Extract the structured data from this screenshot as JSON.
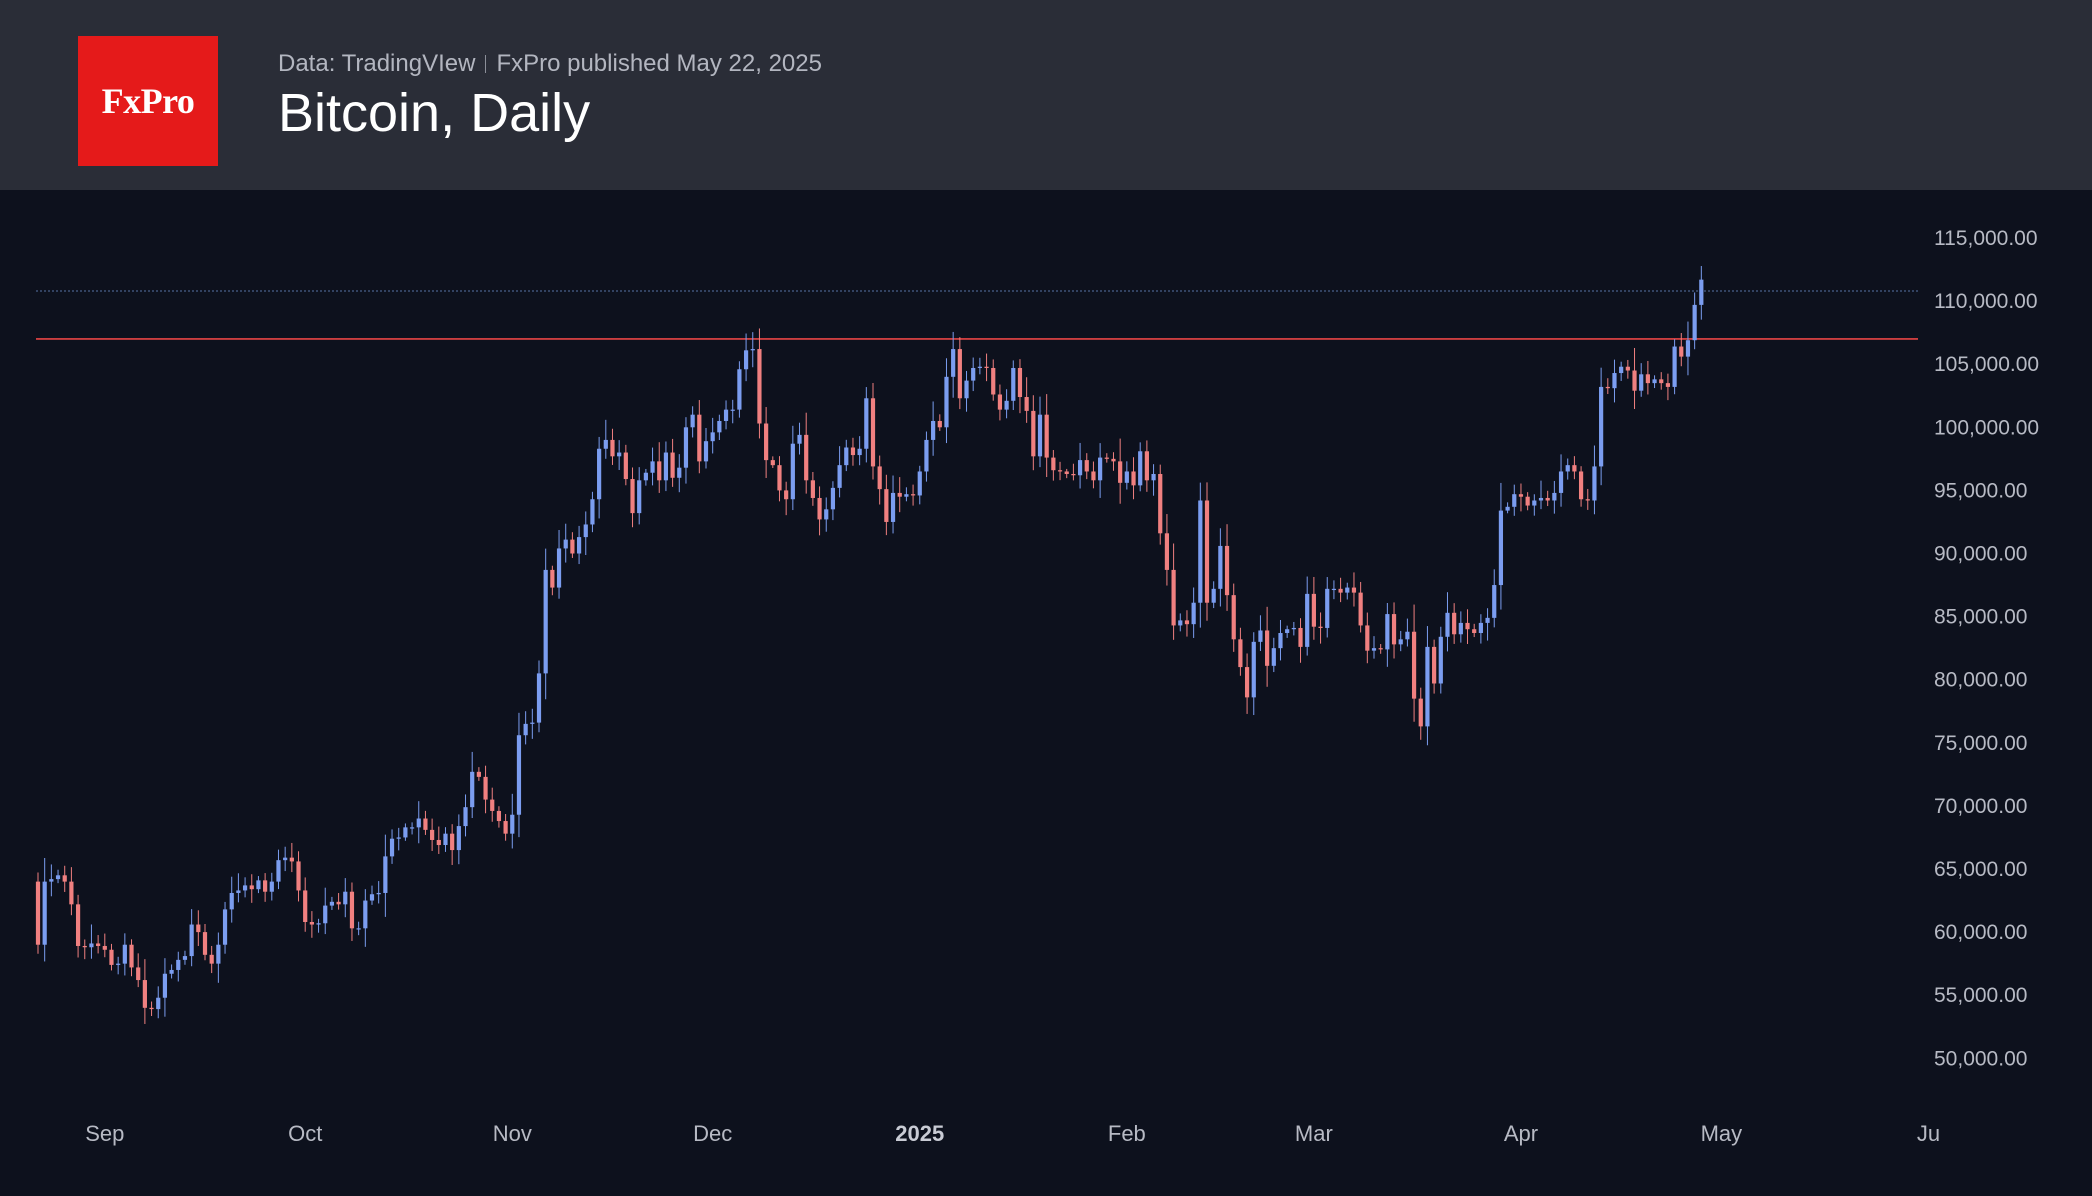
{
  "header": {
    "logo_text": "FxPro",
    "data_source": "Data: TradingVIew",
    "published": "FxPro published May 22, 2025",
    "title": "Bitcoin, Daily"
  },
  "colors": {
    "background": "#0d111d",
    "header": "#2a2d37",
    "logo": "#e51a1a",
    "up": "#7b9df0",
    "down": "#f08080",
    "level_line": "#e84545",
    "last_price_line": "#4a5f8a"
  },
  "chart_data": {
    "type": "candlestick",
    "title": "Bitcoin, Daily",
    "ylim": [
      46000,
      118000
    ],
    "y_ticks": [
      {
        "value": 115000,
        "label": "115,000.00"
      },
      {
        "value": 110000,
        "label": "110,000.00"
      },
      {
        "value": 105000,
        "label": "105,000.00"
      },
      {
        "value": 100000,
        "label": "100,000.00"
      },
      {
        "value": 95000,
        "label": "95,000.00"
      },
      {
        "value": 90000,
        "label": "90,000.00"
      },
      {
        "value": 85000,
        "label": "85,000.00"
      },
      {
        "value": 80000,
        "label": "80,000.00"
      },
      {
        "value": 75000,
        "label": "75,000.00"
      },
      {
        "value": 70000,
        "label": "70,000.00"
      },
      {
        "value": 65000,
        "label": "65,000.00"
      },
      {
        "value": 60000,
        "label": "60,000.00"
      },
      {
        "value": 55000,
        "label": "55,000.00"
      },
      {
        "value": 50000,
        "label": "50,000.00"
      }
    ],
    "x_ticks": [
      {
        "date": "2024-09-01",
        "label": "Sep",
        "bold": false
      },
      {
        "date": "2024-10-01",
        "label": "Oct",
        "bold": false
      },
      {
        "date": "2024-11-01",
        "label": "Nov",
        "bold": false
      },
      {
        "date": "2024-12-01",
        "label": "Dec",
        "bold": false
      },
      {
        "date": "2025-01-01",
        "label": "2025",
        "bold": true
      },
      {
        "date": "2025-02-01",
        "label": "Feb",
        "bold": false
      },
      {
        "date": "2025-03-01",
        "label": "Mar",
        "bold": false
      },
      {
        "date": "2025-04-01",
        "label": "Apr",
        "bold": false
      },
      {
        "date": "2025-05-01",
        "label": "May",
        "bold": false
      },
      {
        "date": "2025-06-01",
        "label": "Ju",
        "bold": false
      }
    ],
    "start_date": "2024-08-22",
    "closes": [
      59000,
      64000,
      64200,
      64500,
      64000,
      62200,
      58900,
      58800,
      59100,
      58900,
      58600,
      57400,
      57500,
      59000,
      57200,
      56200,
      54000,
      53900,
      54800,
      56700,
      57000,
      57800,
      58100,
      60600,
      60000,
      58200,
      57500,
      59000,
      61800,
      63100,
      63300,
      63700,
      63400,
      64100,
      63200,
      64000,
      65700,
      65900,
      65600,
      63300,
      60800,
      60600,
      60700,
      62100,
      62400,
      62200,
      63200,
      60300,
      60300,
      62500,
      63000,
      63100,
      66000,
      67400,
      67500,
      68300,
      68300,
      69000,
      68100,
      67300,
      66900,
      67800,
      66500,
      68400,
      69900,
      72700,
      72300,
      70500,
      69600,
      68800,
      67800,
      69300,
      75600,
      76500,
      76600,
      80500,
      88700,
      87300,
      90400,
      91100,
      90000,
      91300,
      92300,
      94300,
      98300,
      99000,
      97700,
      98000,
      95900,
      93200,
      95800,
      96400,
      97300,
      95800,
      98000,
      96000,
      96800,
      100000,
      101000,
      97300,
      98900,
      99600,
      100500,
      101400,
      101400,
      104600,
      106100,
      106200,
      100300,
      97400,
      97000,
      95000,
      94300,
      98700,
      99400,
      95800,
      94400,
      92700,
      93500,
      95200,
      97000,
      98400,
      97800,
      98300,
      102300,
      96900,
      95100,
      92500,
      94800,
      94500,
      94700,
      94600,
      96500,
      99000,
      100500,
      100000,
      104000,
      106200,
      102300,
      103700,
      104700,
      104800,
      104700,
      102600,
      101400,
      102100,
      104700,
      102400,
      101300,
      97700,
      101000,
      97600,
      96600,
      96500,
      96300,
      96200,
      97400,
      96500,
      95800,
      97600,
      97500,
      97300,
      95600,
      96500,
      95400,
      98100,
      95800,
      96300,
      91600,
      88700,
      84300,
      84700,
      84400,
      86100,
      94200,
      86100,
      87200,
      90600,
      86700,
      83200,
      81000,
      78600,
      83000,
      83900,
      81100,
      82500,
      83700,
      84000,
      84100,
      82600,
      86800,
      84200,
      84100,
      87200,
      87200,
      86900,
      87300,
      86900,
      84300,
      82300,
      82500,
      82400,
      85200,
      82800,
      83200,
      83800,
      78500,
      76300,
      82600,
      79700,
      83400,
      85300,
      83600,
      84500,
      84000,
      83700,
      84500,
      84900,
      87500,
      93400,
      93700,
      94700,
      94500,
      93800,
      94200,
      94400,
      94200,
      94800,
      96500,
      97000,
      96500,
      94300,
      94200,
      96900,
      103200,
      103100,
      104300,
      104800,
      104500,
      102900,
      104200,
      103500,
      103800,
      103500,
      103200,
      106400,
      105600,
      106900,
      109700,
      111700
    ],
    "resistance_level": 107000,
    "last_price_line": 110800
  }
}
